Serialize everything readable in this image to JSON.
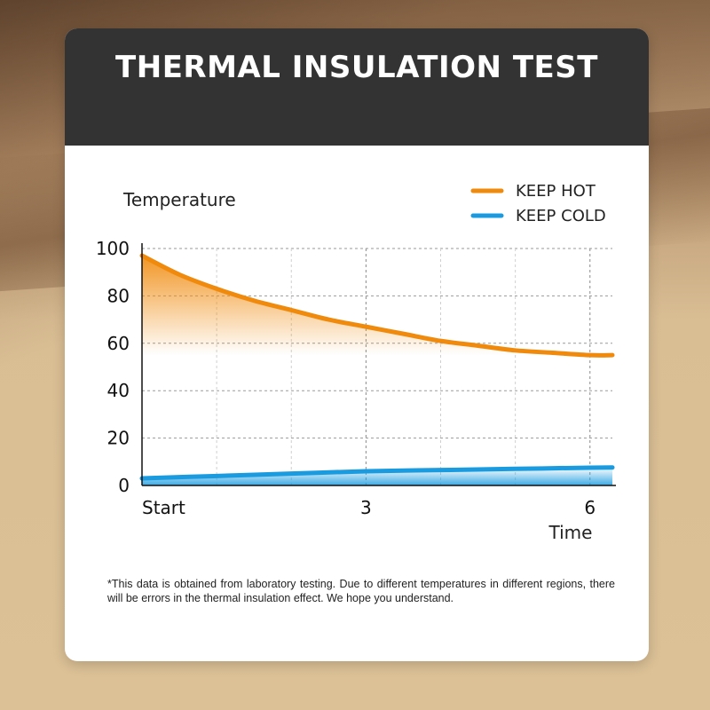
{
  "title": "THERMAL INSULATION TEST",
  "footnote": "*This data is obtained from laboratory testing. Due to different temperatures in different regions, there will be errors in the thermal insulation effect. We hope you understand.",
  "chart_data": {
    "type": "line",
    "title": "",
    "xlabel": "Time",
    "ylabel": "Temperature",
    "x_ticks": [
      {
        "value": 0,
        "label": "Start"
      },
      {
        "value": 3,
        "label": "3"
      },
      {
        "value": 6,
        "label": "6"
      }
    ],
    "y_ticks": [
      0,
      20,
      40,
      60,
      80,
      100
    ],
    "xlim": [
      0,
      6.3
    ],
    "ylim": [
      0,
      100
    ],
    "grid": true,
    "legend_position": "top-right",
    "series": [
      {
        "name": "KEEP HOT",
        "color": "#f08a0c",
        "fill": true,
        "x": [
          0,
          0.5,
          1,
          1.5,
          2,
          2.5,
          3,
          3.5,
          4,
          4.5,
          5,
          5.5,
          6,
          6.3
        ],
        "y": [
          97,
          89,
          83,
          78,
          74,
          70,
          67,
          64,
          61,
          59,
          57,
          56,
          55,
          55
        ]
      },
      {
        "name": "KEEP COLD",
        "color": "#1a9be0",
        "fill": true,
        "x": [
          0,
          1,
          2,
          3,
          4,
          5,
          6,
          6.3
        ],
        "y": [
          3,
          4,
          5,
          6,
          6.5,
          7,
          7.5,
          7.6
        ]
      }
    ]
  }
}
